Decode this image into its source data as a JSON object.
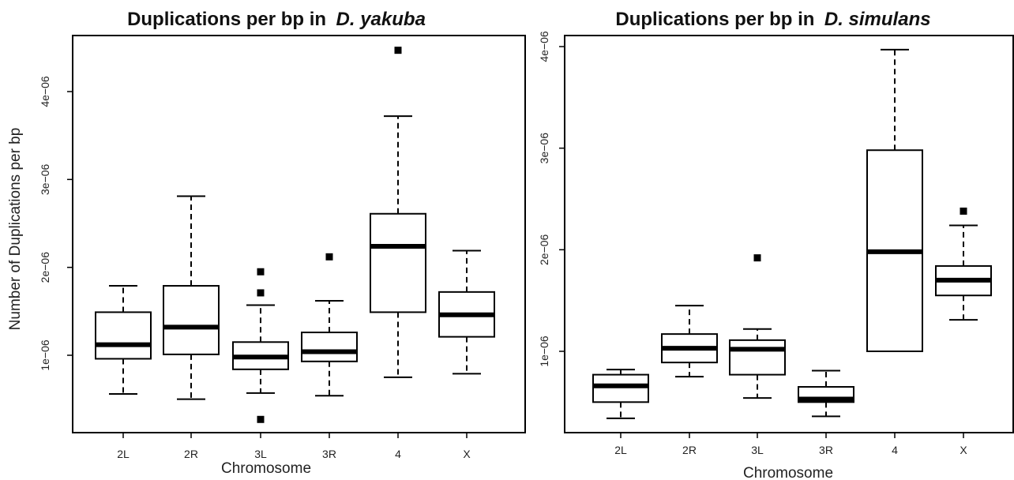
{
  "chart_data": [
    {
      "type": "boxplot",
      "title_prefix": "Duplications per bp in",
      "title_species": "D. yakuba",
      "xlabel": "Chromosome",
      "ylabel": "Number of Duplications per bp",
      "categories": [
        "2L",
        "2R",
        "3L",
        "3R",
        "4",
        "X"
      ],
      "yticks": [
        1e-06,
        2e-06,
        3e-06,
        4e-06
      ],
      "ytick_labels": [
        "1e−06",
        "2e−06",
        "3e−06",
        "4e−06"
      ],
      "ylim": [
        1.5e-07,
        4.7e-06
      ],
      "boxes": [
        {
          "category": "2L",
          "lower_whisker": 5.6e-07,
          "q1": 9.6e-07,
          "median": 1.12e-06,
          "q3": 1.49e-06,
          "upper_whisker": 1.79e-06,
          "outliers": []
        },
        {
          "category": "2R",
          "lower_whisker": 5e-07,
          "q1": 1.01e-06,
          "median": 1.32e-06,
          "q3": 1.79e-06,
          "upper_whisker": 2.81e-06,
          "outliers": []
        },
        {
          "category": "3L",
          "lower_whisker": 5.7e-07,
          "q1": 8.4e-07,
          "median": 9.8e-07,
          "q3": 1.15e-06,
          "upper_whisker": 1.57e-06,
          "outliers": [
            1.95e-06,
            1.71e-06,
            2.7e-07
          ]
        },
        {
          "category": "3R",
          "lower_whisker": 5.4e-07,
          "q1": 9.3e-07,
          "median": 1.04e-06,
          "q3": 1.26e-06,
          "upper_whisker": 1.62e-06,
          "outliers": [
            2.12e-06
          ]
        },
        {
          "category": "4",
          "lower_whisker": 7.5e-07,
          "q1": 1.49e-06,
          "median": 2.24e-06,
          "q3": 2.61e-06,
          "upper_whisker": 3.72e-06,
          "outliers": [
            4.47e-06
          ]
        },
        {
          "category": "X",
          "lower_whisker": 7.9e-07,
          "q1": 1.21e-06,
          "median": 1.46e-06,
          "q3": 1.72e-06,
          "upper_whisker": 2.19e-06,
          "outliers": []
        }
      ]
    },
    {
      "type": "boxplot",
      "title_prefix": "Duplications per bp in",
      "title_species": "D. simulans",
      "xlabel": "Chromosome",
      "ylabel": "",
      "categories": [
        "2L",
        "2R",
        "3L",
        "3R",
        "4",
        "X"
      ],
      "yticks": [
        1e-06,
        2e-06,
        3e-06,
        4e-06
      ],
      "ytick_labels": [
        "1e−06",
        "2e−06",
        "3e−06",
        "4e−06"
      ],
      "ylim": [
        2e-07,
        4.1e-06
      ],
      "boxes": [
        {
          "category": "2L",
          "lower_whisker": 3.4e-07,
          "q1": 5e-07,
          "median": 6.6e-07,
          "q3": 7.7e-07,
          "upper_whisker": 8.2e-07,
          "outliers": []
        },
        {
          "category": "2R",
          "lower_whisker": 7.5e-07,
          "q1": 8.9e-07,
          "median": 1.03e-06,
          "q3": 1.17e-06,
          "upper_whisker": 1.45e-06,
          "outliers": []
        },
        {
          "category": "3L",
          "lower_whisker": 5.4e-07,
          "q1": 7.7e-07,
          "median": 1.02e-06,
          "q3": 1.11e-06,
          "upper_whisker": 1.22e-06,
          "outliers": [
            1.92e-06
          ]
        },
        {
          "category": "3R",
          "lower_whisker": 3.6e-07,
          "q1": 5e-07,
          "median": 5.3e-07,
          "q3": 6.5e-07,
          "upper_whisker": 8.1e-07,
          "outliers": []
        },
        {
          "category": "4",
          "lower_whisker": 1e-06,
          "q1": 1e-06,
          "median": 1.98e-06,
          "q3": 2.98e-06,
          "upper_whisker": 3.97e-06,
          "outliers": []
        },
        {
          "category": "X",
          "lower_whisker": 1.31e-06,
          "q1": 1.55e-06,
          "median": 1.7e-06,
          "q3": 1.84e-06,
          "upper_whisker": 2.24e-06,
          "outliers": [
            2.38e-06
          ]
        }
      ]
    }
  ]
}
